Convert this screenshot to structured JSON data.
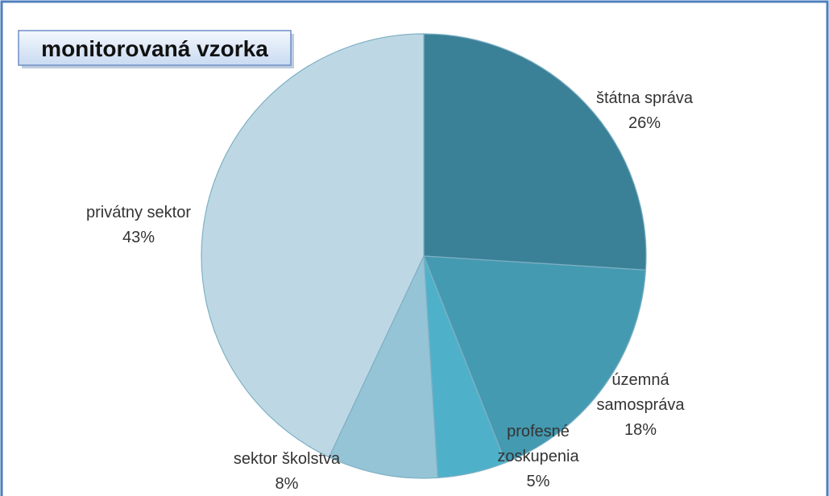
{
  "chart_data": {
    "type": "pie",
    "title": "monitorovaná vzorka",
    "categories": [
      "štátna správa",
      "územná samospráva",
      "profesné zoskupenia",
      "sektor školstva",
      "privátny sektor"
    ],
    "values": [
      26,
      18,
      5,
      8,
      43
    ],
    "value_labels": [
      "26%",
      "18%",
      "5%",
      "8%",
      "43%"
    ],
    "colors": [
      "#3a8197",
      "#449ab1",
      "#4fb1c9",
      "#95c4d6",
      "#bdd8e4"
    ]
  }
}
